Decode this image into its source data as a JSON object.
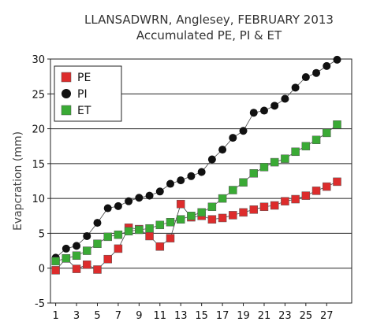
{
  "chart_data": {
    "type": "line",
    "title": "LLANSADWRN, Anglesey, FEBRUARY 2013",
    "subtitle": "Accumulated PE,  PI & ET",
    "xlabel": "",
    "ylabel": "Evapcration (mm)",
    "xlim": [
      1,
      28
    ],
    "ylim": [
      -5,
      30
    ],
    "x_ticks": [
      1,
      3,
      5,
      7,
      9,
      11,
      13,
      15,
      17,
      19,
      21,
      23,
      25,
      27
    ],
    "y_ticks": [
      -5,
      0,
      5,
      10,
      15,
      20,
      25,
      30
    ],
    "grid": "horizontal",
    "legend_position": "top-left",
    "x": [
      1,
      2,
      3,
      4,
      5,
      6,
      7,
      8,
      9,
      10,
      11,
      12,
      13,
      14,
      15,
      16,
      17,
      18,
      19,
      20,
      21,
      22,
      23,
      24,
      25,
      26,
      27,
      28
    ],
    "series": [
      {
        "name": "PE",
        "marker": "square",
        "color": "#dd2c2c",
        "values": [
          -0.3,
          1.4,
          -0.1,
          0.5,
          -0.2,
          1.3,
          2.8,
          5.8,
          5.6,
          4.6,
          3.1,
          4.3,
          9.2,
          7.3,
          7.5,
          7.0,
          7.2,
          7.6,
          8.0,
          8.4,
          8.8,
          9.0,
          9.6,
          9.9,
          10.4,
          11.1,
          11.7,
          12.4
        ]
      },
      {
        "name": "PI",
        "marker": "circle",
        "color": "#111111",
        "values": [
          1.5,
          2.8,
          3.2,
          4.6,
          6.5,
          8.6,
          8.9,
          9.6,
          10.1,
          10.4,
          11.0,
          12.1,
          12.6,
          13.2,
          13.8,
          15.6,
          17.0,
          18.7,
          19.7,
          22.3,
          22.6,
          23.3,
          24.3,
          25.9,
          27.4,
          28.0,
          29.0,
          29.9
        ]
      },
      {
        "name": "ET",
        "marker": "square",
        "color": "#3aaa35",
        "values": [
          1.0,
          1.4,
          1.8,
          2.5,
          3.5,
          4.5,
          4.8,
          5.3,
          5.5,
          5.7,
          6.2,
          6.6,
          7.0,
          7.5,
          8.0,
          8.8,
          10.0,
          11.2,
          12.3,
          13.6,
          14.5,
          15.2,
          15.7,
          16.7,
          17.5,
          18.4,
          19.4,
          20.6
        ]
      }
    ]
  }
}
